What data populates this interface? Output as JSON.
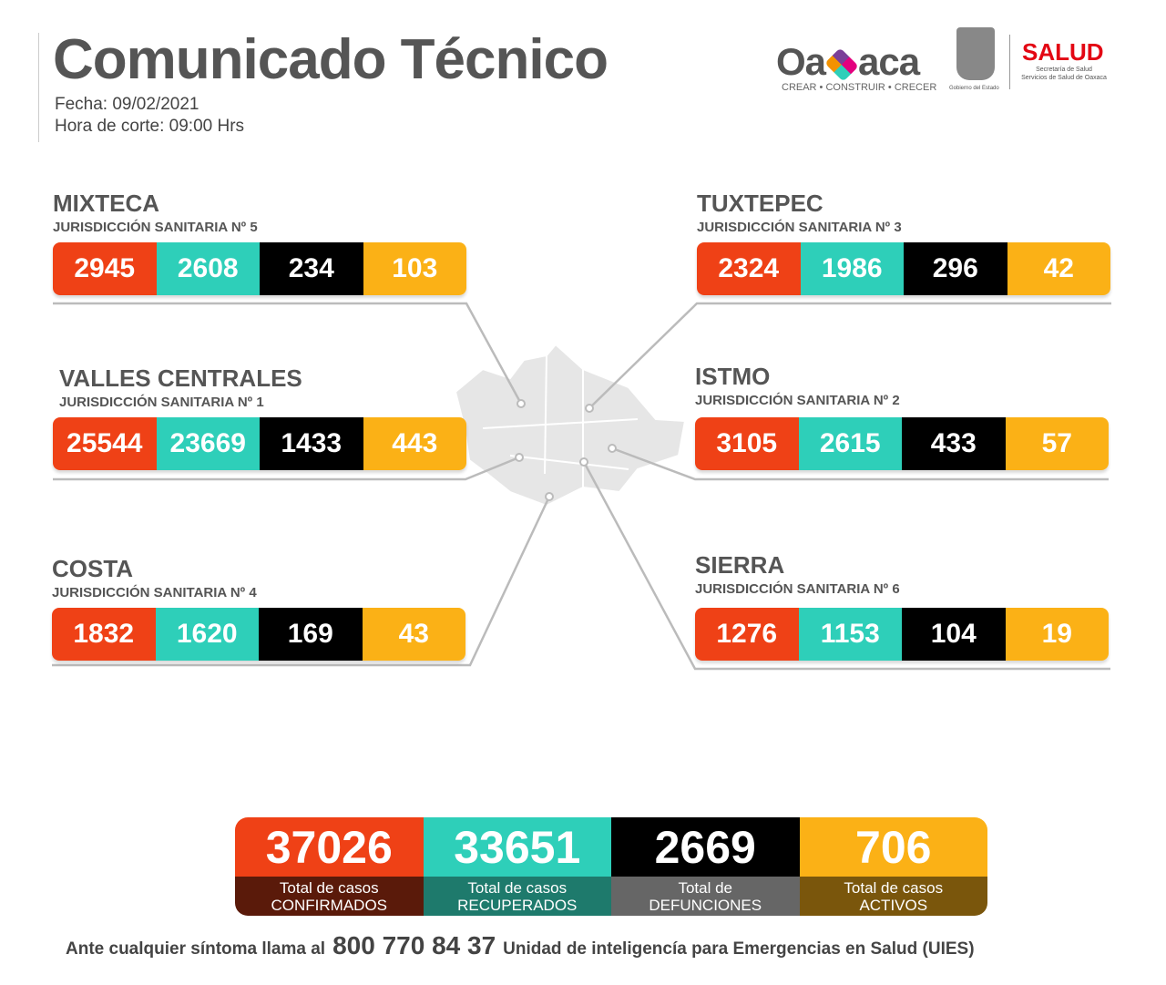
{
  "header": {
    "title": "Comunicado Técnico",
    "date": "Fecha: 09/02/2021",
    "cutoff": "Hora de corte: 09:00 Hrs"
  },
  "logos": {
    "oaxaca": "Oaxaca",
    "oaxaca_tagline": "CREAR • CONSTRUIR • CRECER",
    "gobierno": "Gobierno del Estado",
    "salud": "SALUD",
    "salud_sub1": "Secretaría de Salud",
    "salud_sub2": "Servicios de Salud de Oaxaca"
  },
  "colors": {
    "confirmados": "#ef4116",
    "recuperados": "#2ecfb9",
    "defunciones": "#000000",
    "activos": "#fbb116"
  },
  "regions": [
    {
      "name": "MIXTECA",
      "sub": "JURISDICCIÓN SANITARIA Nº 5",
      "values": [
        "2945",
        "2608",
        "234",
        "103"
      ]
    },
    {
      "name": "TUXTEPEC",
      "sub": "JURISDICCIÓN SANITARIA Nº 3",
      "values": [
        "2324",
        "1986",
        "296",
        "42"
      ]
    },
    {
      "name": "VALLES CENTRALES",
      "sub": "JURISDICCIÓN SANITARIA Nº 1",
      "values": [
        "25544",
        "23669",
        "1433",
        "443"
      ]
    },
    {
      "name": "ISTMO",
      "sub": "JURISDICCIÓN SANITARIA Nº 2",
      "values": [
        "3105",
        "2615",
        "433",
        "57"
      ]
    },
    {
      "name": "COSTA",
      "sub": "JURISDICCIÓN SANITARIA Nº 4",
      "values": [
        "1832",
        "1620",
        "169",
        "43"
      ]
    },
    {
      "name": "SIERRA",
      "sub": "JURISDICCIÓN SANITARIA Nº 6",
      "values": [
        "1276",
        "1153",
        "104",
        "19"
      ]
    }
  ],
  "totals": [
    {
      "value": "37026",
      "l1": "Total de casos",
      "l2": "CONFIRMADOS"
    },
    {
      "value": "33651",
      "l1": "Total de casos",
      "l2": "RECUPERADOS"
    },
    {
      "value": "2669",
      "l1": "Total de",
      "l2": "DEFUNCIONES"
    },
    {
      "value": "706",
      "l1": "Total de casos",
      "l2": "ACTIVOS"
    }
  ],
  "footer": {
    "pre": "Ante cualquier síntoma llama al",
    "phone": "800 770 84 37",
    "post": "Unidad de inteligencía para Emergencias en Salud (UIES)"
  }
}
